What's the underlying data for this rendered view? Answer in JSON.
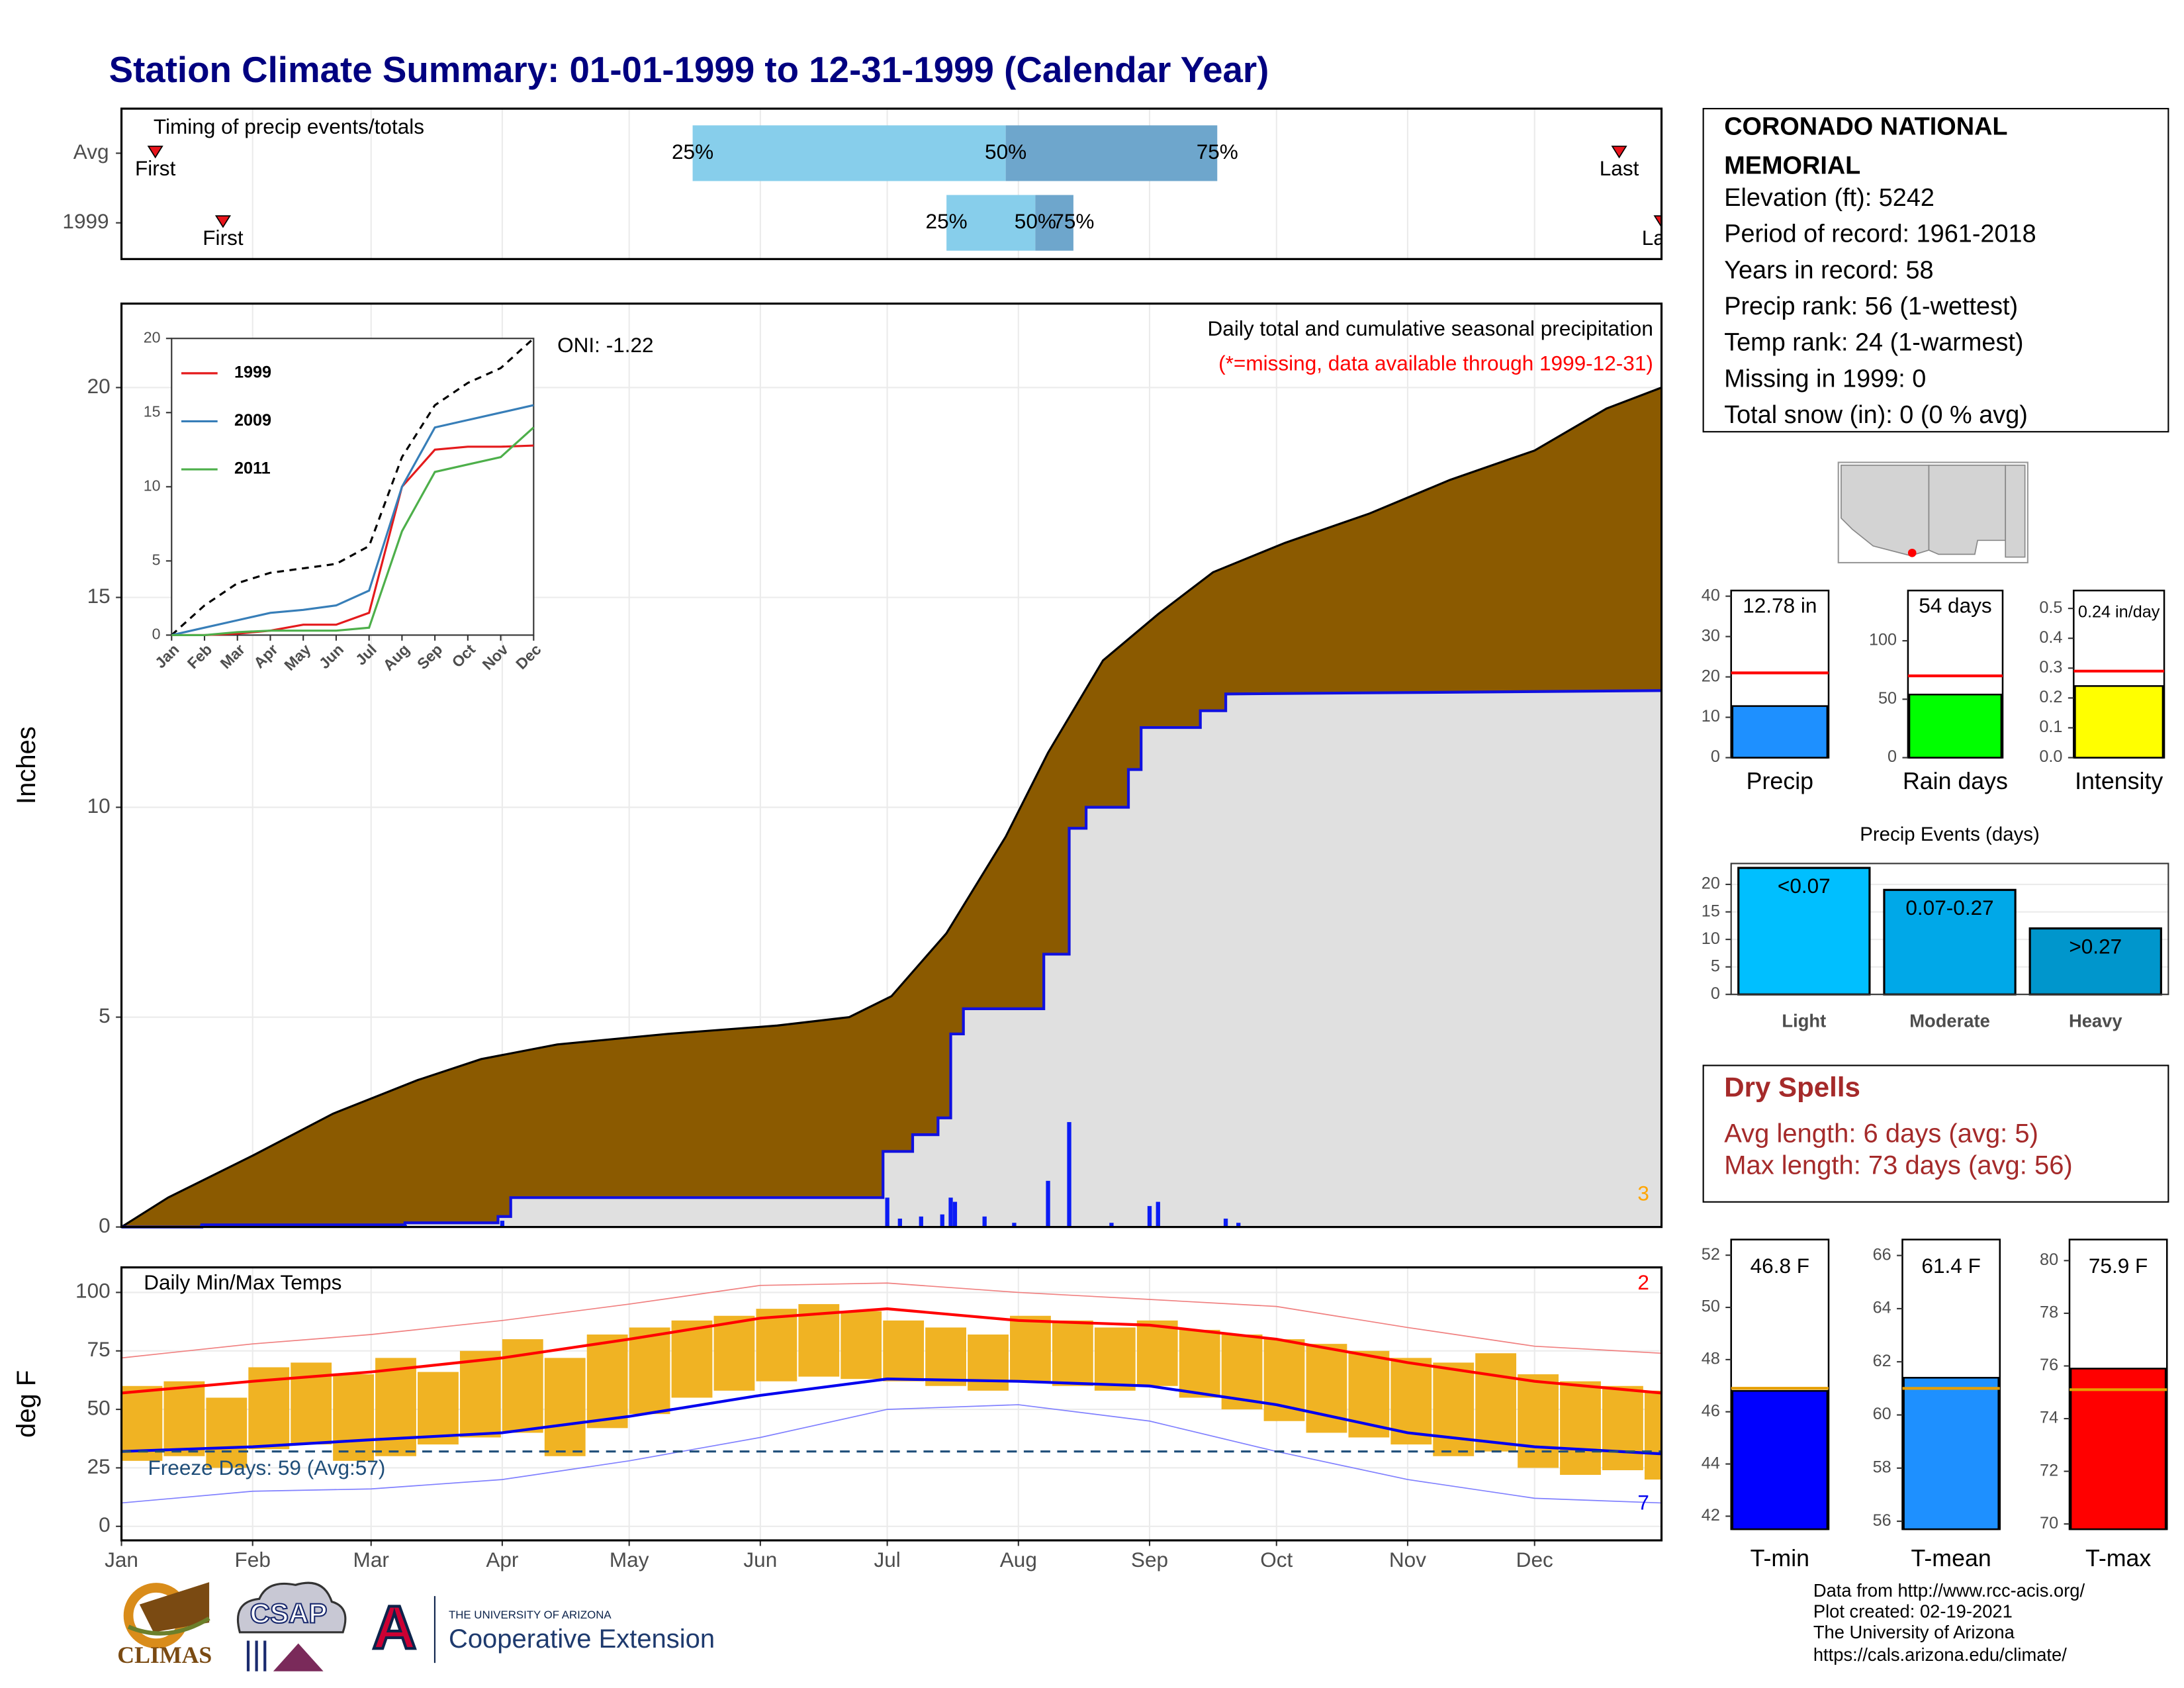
{
  "title": "Station Climate Summary: 01-01-1999 to 12-31-1999 (Calendar Year)",
  "station_info": {
    "name": [
      "CORONADO NATIONAL",
      "MEMORIAL"
    ],
    "lines": [
      "Elevation (ft): 5242",
      "Period of record: 1961-2018",
      "Years in record: 58",
      "Precip rank: 56 (1-wettest)",
      "Temp rank: 24 (1-warmest)",
      "Missing in 1999: 0",
      "Total snow (in): 0 (0 % avg)"
    ]
  },
  "dry_spells": {
    "title": "Dry Spells",
    "lines": [
      "Avg length: 6 days (avg: 5)",
      "Max length: 73 days (avg: 56)"
    ]
  },
  "footer": [
    "Data from http://www.rcc-acis.org/",
    "Plot created: 02-19-2021",
    "The University of Arizona",
    "https://cals.arizona.edu/climate/"
  ],
  "logos": {
    "climas": "CLIMAS",
    "csap": "CSAP",
    "university": "THE UNIVERSITY OF ARIZONA",
    "extension": "Cooperative Extension"
  },
  "chart_data": [
    {
      "type": "timing",
      "title": "Timing of precip events/totals",
      "xlim": [
        1,
        365
      ],
      "categories": [
        "Avg",
        "1999"
      ],
      "first": [
        9,
        25
      ],
      "q25": [
        136,
        196
      ],
      "q50": [
        210,
        217
      ],
      "q75": [
        260,
        226
      ],
      "last": [
        355,
        365
      ],
      "labels": {
        "first": "First",
        "q25": "25%",
        "q50": "50%",
        "q75": "75%",
        "last": "Last"
      },
      "colors": {
        "low": "#87ceeb",
        "high": "#6ea6cc",
        "marker": "#e8141b"
      }
    },
    {
      "type": "area",
      "title": "Daily total and cumulative seasonal precipitation",
      "subtitle": "(*=missing, data available through 1999-12-31)",
      "annotation": "ONI: -1.22",
      "corner_label": "3",
      "y_label": "Inches",
      "xlim": [
        1,
        365
      ],
      "ylim": [
        0,
        22
      ],
      "yticks": [
        0,
        5,
        10,
        15,
        20
      ],
      "grid": true,
      "average": {
        "color": "#8b5a00",
        "x": [
          1,
          12,
          32,
          51,
          71,
          86,
          104,
          130,
          156,
          173,
          183,
          196,
          210,
          220,
          233,
          246,
          259,
          276,
          296,
          315,
          335,
          352,
          365
        ],
        "values": [
          0,
          0.7,
          1.7,
          2.7,
          3.5,
          4.0,
          4.35,
          4.6,
          4.8,
          5.0,
          5.5,
          7.0,
          9.3,
          11.3,
          13.5,
          14.6,
          15.6,
          16.3,
          17.0,
          17.8,
          18.5,
          19.5,
          20.0
        ]
      },
      "observed": {
        "color": "#1010e0",
        "fill": "#e0e0e0",
        "x": [
          1,
          20,
          20,
          68,
          68,
          90,
          90,
          93,
          93,
          181,
          181,
          188,
          188,
          194,
          194,
          197,
          197,
          200,
          200,
          219,
          219,
          225,
          225,
          229,
          229,
          239,
          239,
          242,
          242,
          256,
          256,
          262,
          262,
          365
        ],
        "values": [
          0,
          0,
          0.05,
          0.05,
          0.1,
          0.1,
          0.25,
          0.25,
          0.7,
          0.7,
          1.8,
          1.8,
          2.2,
          2.2,
          2.6,
          2.6,
          4.6,
          4.6,
          5.2,
          5.2,
          6.5,
          6.5,
          9.5,
          9.5,
          10.0,
          10.0,
          10.9,
          10.9,
          11.9,
          11.9,
          12.3,
          12.3,
          12.7,
          12.78
        ]
      },
      "daily": {
        "color": "#0b1cf5",
        "x": [
          20,
          68,
          91,
          182,
          185,
          190,
          195,
          197,
          198,
          205,
          212,
          220,
          225,
          235,
          244,
          246,
          262,
          265
        ],
        "values": [
          0.05,
          0.05,
          0.15,
          0.7,
          0.2,
          0.25,
          0.3,
          0.7,
          0.6,
          0.25,
          0.1,
          1.1,
          2.5,
          0.1,
          0.5,
          0.6,
          0.2,
          0.1
        ]
      }
    },
    {
      "type": "line",
      "categories": [
        "Jan",
        "Feb",
        "Mar",
        "Apr",
        "May",
        "Jun",
        "Jul",
        "Aug",
        "Sep",
        "Oct",
        "Nov",
        "Dec"
      ],
      "ylim": [
        0,
        20
      ],
      "yticks": [
        0,
        5,
        10,
        15,
        20
      ],
      "series": [
        {
          "name": "1999",
          "color": "#e41a1c",
          "values": [
            0,
            0,
            0.1,
            0.3,
            0.7,
            0.7,
            1.5,
            10.0,
            12.5,
            12.7,
            12.7,
            12.78
          ]
        },
        {
          "name": "2009",
          "color": "#377eb8",
          "values": [
            0,
            0.5,
            1.0,
            1.5,
            1.7,
            2.0,
            3.0,
            10.0,
            14.0,
            14.5,
            15.0,
            15.5
          ]
        },
        {
          "name": "2011",
          "color": "#4daf4a",
          "values": [
            0,
            0,
            0.2,
            0.3,
            0.3,
            0.3,
            0.5,
            7.0,
            11.0,
            11.5,
            12.0,
            14.0
          ]
        }
      ],
      "average_values": [
        0,
        2.0,
        3.5,
        4.2,
        4.5,
        4.8,
        6.0,
        12.0,
        15.5,
        17.0,
        18.0,
        20.0
      ],
      "average_color": "#000000"
    },
    {
      "type": "gauge",
      "label": "Precip",
      "value": 12.78,
      "value_label": "12.78 in",
      "average": 21,
      "ylim": [
        0,
        41.4
      ],
      "yticks": [
        0,
        10,
        20,
        30,
        40
      ],
      "color": "#1e90ff",
      "average_color": "#ff0000"
    },
    {
      "type": "gauge",
      "label": "Rain days",
      "value": 54,
      "value_label": "54 days",
      "average": 70,
      "ylim": [
        0,
        143
      ],
      "yticks": [
        0,
        50,
        100
      ],
      "color": "#00ff00",
      "average_color": "#ff0000"
    },
    {
      "type": "gauge",
      "label": "Intensity",
      "value": 0.24,
      "value_label": "0.24 in/day",
      "average": 0.29,
      "ylim": [
        0,
        0.56
      ],
      "yticks": [
        {
          "value": 0,
          "label": "0.0"
        },
        0.1,
        0.2,
        0.3,
        0.4,
        0.5
      ],
      "color": "#ffff00",
      "average_color": "#ff0000"
    },
    {
      "type": "bar",
      "title": "Precip Events (days)",
      "categories": [
        "Light",
        "Moderate",
        "Heavy"
      ],
      "values": [
        23,
        19,
        12
      ],
      "bar_labels": [
        "<0.07",
        "0.07-0.27",
        ">0.27"
      ],
      "colors": [
        "#00bfff",
        "#00a8e8",
        "#0096cc"
      ],
      "ylim": [
        0,
        23.8
      ],
      "yticks": [
        0,
        5,
        10,
        15,
        20
      ],
      "grid": true
    },
    {
      "type": "range_bar",
      "title": "Daily Min/Max Temps",
      "y_label": "deg F",
      "annotation": "Freeze Days: 59 (Avg:57)",
      "corner_high": "2",
      "corner_low": "7",
      "xlim": [
        1,
        365
      ],
      "ylim": [
        -6,
        110.7
      ],
      "yticks": [
        0,
        25,
        50,
        75,
        100
      ],
      "grid": true,
      "xticks": [
        {
          "value": 1,
          "label": "Jan"
        },
        {
          "value": 32,
          "label": "Feb"
        },
        {
          "value": 60,
          "label": "Mar"
        },
        {
          "value": 91,
          "label": "Apr"
        },
        {
          "value": 121,
          "label": "May"
        },
        {
          "value": 152,
          "label": "Jun"
        },
        {
          "value": 182,
          "label": "Jul"
        },
        {
          "value": 213,
          "label": "Aug"
        },
        {
          "value": 244,
          "label": "Sep"
        },
        {
          "value": 274,
          "label": "Oct"
        },
        {
          "value": 305,
          "label": "Nov"
        },
        {
          "value": 335,
          "label": "Dec"
        }
      ],
      "freeze_line": 32,
      "freeze_color": "#1f4e79",
      "bar_color": "#f0b323",
      "daily_x": [
        1,
        11,
        21,
        31,
        41,
        51,
        61,
        71,
        81,
        91,
        101,
        111,
        121,
        131,
        141,
        151,
        161,
        171,
        181,
        191,
        201,
        211,
        221,
        231,
        241,
        251,
        261,
        271,
        281,
        291,
        301,
        311,
        321,
        331,
        341,
        351,
        361
      ],
      "daily_max": [
        60,
        62,
        55,
        68,
        70,
        65,
        72,
        66,
        75,
        80,
        72,
        82,
        85,
        88,
        90,
        93,
        95,
        92,
        88,
        85,
        82,
        90,
        88,
        85,
        88,
        84,
        82,
        80,
        78,
        75,
        72,
        70,
        74,
        65,
        62,
        60,
        58
      ],
      "daily_min": [
        28,
        30,
        25,
        33,
        35,
        28,
        30,
        35,
        38,
        40,
        30,
        42,
        48,
        55,
        58,
        62,
        64,
        63,
        62,
        60,
        58,
        62,
        60,
        58,
        60,
        55,
        50,
        45,
        40,
        38,
        35,
        30,
        32,
        25,
        22,
        24,
        20
      ],
      "normal_x": [
        1,
        32,
        60,
        91,
        121,
        152,
        182,
        213,
        244,
        274,
        305,
        335,
        365
      ],
      "normal_max": [
        57,
        62,
        66,
        72,
        80,
        89,
        93,
        88,
        86,
        80,
        70,
        62,
        57
      ],
      "normal_min": [
        32,
        34,
        37,
        40,
        47,
        56,
        63,
        62,
        60,
        52,
        40,
        34,
        31
      ],
      "record_high": [
        72,
        78,
        82,
        88,
        95,
        103,
        104,
        100,
        97,
        94,
        85,
        77,
        74
      ],
      "record_low": [
        10,
        15,
        16,
        20,
        28,
        38,
        50,
        52,
        45,
        32,
        20,
        12,
        10
      ],
      "colors": {
        "normal_max": "#ff0000",
        "normal_min": "#0000ee",
        "record_high": "#f08080",
        "record_low": "#8080ff"
      }
    },
    {
      "type": "gauge",
      "label": "T-min",
      "value": 46.8,
      "value_label": "46.8 F",
      "average": 46.9,
      "ylim": [
        41.5,
        52.6
      ],
      "yticks": [
        42,
        44,
        46,
        48,
        50,
        52
      ],
      "color": "#0000ff",
      "average_color": "#e69f00"
    },
    {
      "type": "gauge",
      "label": "T-mean",
      "value": 61.4,
      "value_label": "61.4 F",
      "average": 61.0,
      "ylim": [
        55.7,
        66.6
      ],
      "yticks": [
        56,
        58,
        60,
        62,
        64,
        66
      ],
      "color": "#1e90ff",
      "average_color": "#e69f00"
    },
    {
      "type": "gauge",
      "label": "T-max",
      "value": 75.9,
      "value_label": "75.9 F",
      "average": 75.1,
      "ylim": [
        69.8,
        80.8
      ],
      "yticks": [
        70,
        72,
        74,
        76,
        78,
        80
      ],
      "color": "#ff0000",
      "average_color": "#e69f00"
    }
  ]
}
